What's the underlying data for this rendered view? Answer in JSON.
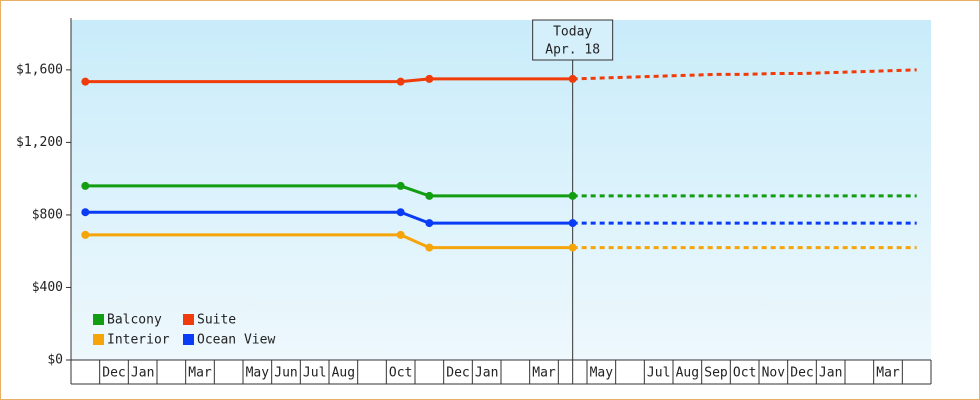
{
  "chart_data": {
    "type": "line",
    "categories": [
      null,
      "Dec",
      "Jan",
      null,
      "Mar",
      null,
      "May",
      "Jun",
      "Jul",
      "Aug",
      null,
      "Oct",
      null,
      "Dec",
      "Jan",
      null,
      "Mar",
      null,
      "May",
      null,
      "Jul",
      "Aug",
      "Sep",
      "Oct",
      "Nov",
      "Dec",
      "Jan",
      null,
      "Mar",
      null
    ],
    "series": [
      {
        "name": "Balcony",
        "color": "#129d12",
        "values": [
          960,
          960,
          960,
          960,
          960,
          960,
          960,
          960,
          960,
          960,
          960,
          960,
          905,
          905,
          905,
          905,
          905,
          905,
          null,
          null,
          null,
          null,
          null,
          null,
          null,
          null,
          null,
          null,
          null,
          null
        ],
        "forecast": [
          null,
          null,
          null,
          null,
          null,
          null,
          null,
          null,
          null,
          null,
          null,
          null,
          null,
          null,
          null,
          null,
          null,
          905,
          905,
          905,
          905,
          905,
          905,
          905,
          905,
          905,
          905,
          905,
          905,
          905
        ]
      },
      {
        "name": "Suite",
        "color": "#f03c0a",
        "values": [
          1535,
          1535,
          1535,
          1535,
          1535,
          1535,
          1535,
          1535,
          1535,
          1535,
          1535,
          1535,
          1550,
          1550,
          1550,
          1550,
          1550,
          1550,
          null,
          null,
          null,
          null,
          null,
          null,
          null,
          null,
          null,
          null,
          null,
          null
        ],
        "forecast": [
          null,
          null,
          null,
          null,
          null,
          null,
          null,
          null,
          null,
          null,
          null,
          null,
          null,
          null,
          null,
          null,
          null,
          1550,
          1555,
          1560,
          1565,
          1570,
          1575,
          1575,
          1580,
          1580,
          1585,
          1590,
          1595,
          1600
        ]
      },
      {
        "name": "Interior",
        "color": "#f5a40a",
        "values": [
          690,
          690,
          690,
          690,
          690,
          690,
          690,
          690,
          690,
          690,
          690,
          690,
          620,
          620,
          620,
          620,
          620,
          620,
          null,
          null,
          null,
          null,
          null,
          null,
          null,
          null,
          null,
          null,
          null,
          null
        ],
        "forecast": [
          null,
          null,
          null,
          null,
          null,
          null,
          null,
          null,
          null,
          null,
          null,
          null,
          null,
          null,
          null,
          null,
          null,
          620,
          620,
          620,
          620,
          620,
          620,
          620,
          620,
          620,
          620,
          620,
          620,
          620
        ]
      },
      {
        "name": "Ocean View",
        "color": "#0a3cf5",
        "values": [
          815,
          815,
          815,
          815,
          815,
          815,
          815,
          815,
          815,
          815,
          815,
          815,
          755,
          755,
          755,
          755,
          755,
          755,
          null,
          null,
          null,
          null,
          null,
          null,
          null,
          null,
          null,
          null,
          null,
          null
        ],
        "forecast": [
          null,
          null,
          null,
          null,
          null,
          null,
          null,
          null,
          null,
          null,
          null,
          null,
          null,
          null,
          null,
          null,
          null,
          755,
          755,
          755,
          755,
          755,
          755,
          755,
          755,
          755,
          755,
          755,
          755,
          755
        ]
      }
    ],
    "ylim": [
      0,
      1875
    ],
    "yticks": [
      {
        "value": 0,
        "label": "$0"
      },
      {
        "value": 400,
        "label": "$400"
      },
      {
        "value": 800,
        "label": "$800"
      },
      {
        "value": 1200,
        "label": "$1,200"
      },
      {
        "value": 1600,
        "label": "$1,600"
      }
    ],
    "today": {
      "index": 17,
      "label": [
        "Today",
        "Apr. 18"
      ]
    },
    "legend": "lower left"
  }
}
